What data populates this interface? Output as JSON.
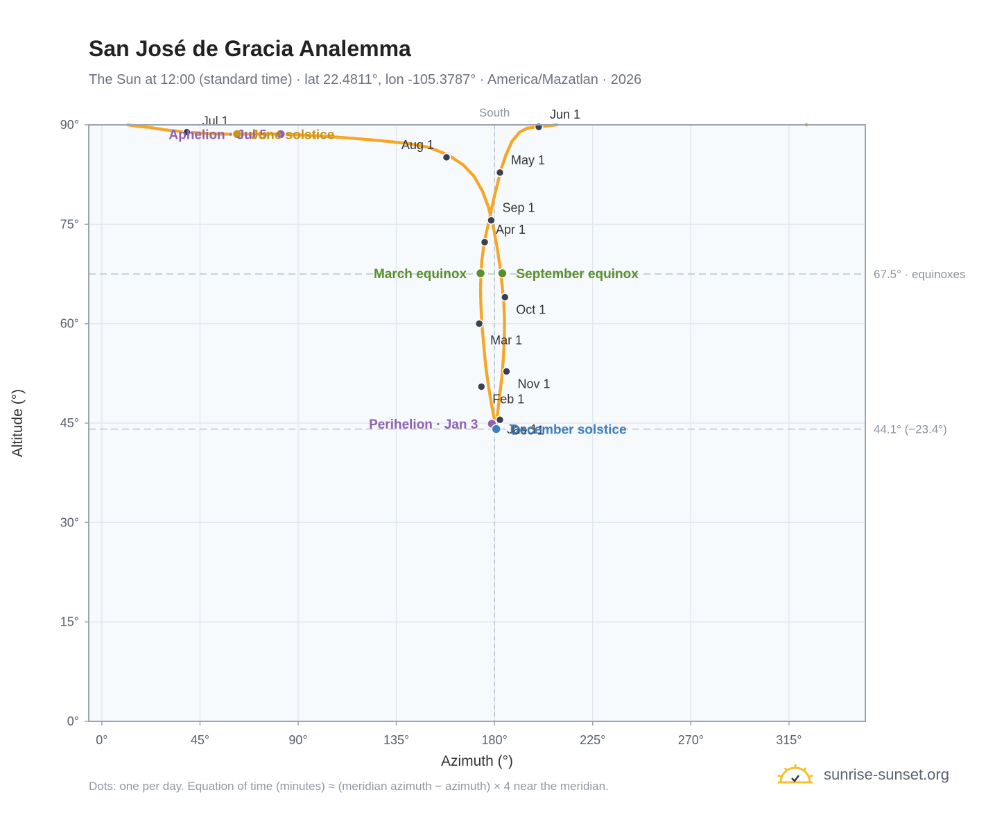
{
  "header": {
    "title": "San José de Gracia Analemma",
    "subtitle": "The Sun at 12:00 (standard time) · lat 22.4811°, lon -105.3787° · America/Mazatlan · 2026"
  },
  "footer": {
    "note": "Dots: one per day. Equation of time (minutes) ≈ (meridian azimuth − azimuth) × 4 near the meridian.",
    "brand": "sunrise-sunset.org",
    "brand_icon": "sun-logo-icon"
  },
  "colors": {
    "curve": "#f5a623",
    "month_dot": "#374151",
    "equinox": "#5a8f2e",
    "perihelion": "#8e62b0",
    "solstice_dec": "#3d7ebf",
    "solstice_jun": "#c8941a",
    "grid": "#e3e8ee",
    "plot_bg": "#f7fafd",
    "ref_line": "#b8c4cf",
    "frame": "#9aa5b1"
  },
  "chart_data": {
    "type": "scatter",
    "xlabel": "Azimuth (°)",
    "ylabel": "Altitude (°)",
    "xlim": [
      -6,
      350
    ],
    "ylim": [
      0,
      90
    ],
    "xticks": [
      0,
      45,
      90,
      135,
      180,
      225,
      270,
      315
    ],
    "xtick_labels": [
      "0°",
      "45°",
      "90°",
      "135°",
      "180°",
      "225°",
      "270°",
      "315°"
    ],
    "yticks": [
      0,
      15,
      30,
      45,
      60,
      75,
      90
    ],
    "ytick_labels": [
      "0°",
      "15°",
      "30°",
      "45°",
      "60°",
      "75°",
      "90°"
    ],
    "grid": true,
    "meridian": {
      "azimuth": 180,
      "label": "South"
    },
    "reference_lines": [
      {
        "altitude": 67.5,
        "label": "67.5° · equinoxes"
      },
      {
        "altitude": 44.1,
        "label": "44.1° (−23.4°)"
      }
    ],
    "curve_path": [
      [
        180.8,
        44.5
      ],
      [
        181.6,
        47
      ],
      [
        182.5,
        49.5
      ],
      [
        183.4,
        52
      ],
      [
        184.0,
        54.5
      ],
      [
        184.5,
        57.5
      ],
      [
        184.6,
        60.5
      ],
      [
        184.3,
        63
      ],
      [
        183.6,
        65.5
      ],
      [
        182.6,
        68.5
      ],
      [
        181.2,
        71.5
      ],
      [
        179.5,
        74.5
      ],
      [
        177.3,
        77.5
      ],
      [
        174.5,
        80.0
      ],
      [
        170.5,
        82.3
      ],
      [
        165.5,
        84.0
      ],
      [
        158.5,
        85.5
      ],
      [
        150.0,
        86.6
      ],
      [
        140.0,
        87.2
      ],
      [
        125.0,
        87.7
      ],
      [
        110.0,
        88.1
      ],
      [
        95.0,
        88.4
      ],
      [
        82.0,
        88.6
      ],
      [
        75.0,
        88.6
      ],
      [
        65.0,
        88.6
      ],
      [
        55.0,
        88.6
      ],
      [
        48.0,
        88.7
      ],
      [
        39.0,
        88.9
      ],
      [
        30.0,
        89.2
      ],
      [
        22.0,
        89.6
      ],
      [
        16.0,
        89.8
      ],
      [
        12.0,
        90.0
      ]
    ],
    "curve_path_b": [
      [
        180.8,
        44.5
      ],
      [
        180.0,
        45.5
      ],
      [
        178.8,
        47.5
      ],
      [
        177.3,
        50.5
      ],
      [
        176.0,
        53.5
      ],
      [
        175.0,
        57.0
      ],
      [
        174.2,
        60.0
      ],
      [
        173.8,
        62.5
      ],
      [
        173.6,
        65.0
      ],
      [
        173.8,
        67.5
      ],
      [
        174.2,
        69.5
      ],
      [
        175.3,
        72.3
      ],
      [
        176.8,
        74.5
      ],
      [
        178.3,
        76.8
      ],
      [
        179.8,
        79.0
      ],
      [
        181.3,
        81.0
      ],
      [
        183.0,
        83.3
      ],
      [
        185.3,
        85.5
      ],
      [
        188.0,
        87.5
      ],
      [
        191.5,
        88.9
      ],
      [
        195.0,
        89.5
      ],
      [
        200.3,
        89.7
      ],
      [
        206.0,
        89.9
      ],
      [
        208.5,
        90.0
      ]
    ],
    "month_markers": [
      {
        "label": "Jan 1",
        "azimuth": 182.5,
        "altitude": 45.5
      },
      {
        "label": "Feb 1",
        "azimuth": 174.0,
        "altitude": 50.5
      },
      {
        "label": "Mar 1",
        "azimuth": 173.0,
        "altitude": 60.0
      },
      {
        "label": "Apr 1",
        "azimuth": 175.5,
        "altitude": 72.3
      },
      {
        "label": "May 1",
        "azimuth": 182.5,
        "altitude": 82.8
      },
      {
        "label": "Jun 1",
        "azimuth": 200.3,
        "altitude": 89.7
      },
      {
        "label": "Jul 1",
        "azimuth": 39.0,
        "altitude": 88.9
      },
      {
        "label": "Aug 1",
        "azimuth": 158.0,
        "altitude": 85.1
      },
      {
        "label": "Sep 1",
        "azimuth": 178.5,
        "altitude": 75.6
      },
      {
        "label": "Oct 1",
        "azimuth": 184.8,
        "altitude": 64.0
      },
      {
        "label": "Nov 1",
        "azimuth": 185.5,
        "altitude": 52.8
      },
      {
        "label": "Dec 1",
        "azimuth": 180.8,
        "altitude": 44.1
      }
    ],
    "events": [
      {
        "label": "March equinox",
        "azimuth": 173.6,
        "altitude": 67.6,
        "color_key": "equinox",
        "anchor": "end"
      },
      {
        "label": "September equinox",
        "azimuth": 183.6,
        "altitude": 67.6,
        "color_key": "equinox",
        "anchor": "start"
      },
      {
        "label": "Perihelion · Jan 3",
        "azimuth": 178.8,
        "altitude": 44.9,
        "color_key": "perihelion",
        "anchor": "end"
      },
      {
        "label": "December solstice",
        "azimuth": 180.8,
        "altitude": 44.1,
        "color_key": "solstice_dec",
        "anchor": "start"
      },
      {
        "label": "Aphelion · Jul 5",
        "azimuth": 82.0,
        "altitude": 88.6,
        "color_key": "perihelion",
        "anchor": "end"
      },
      {
        "label": "June solstice",
        "azimuth": 62.0,
        "altitude": 88.6,
        "color_key": "solstice_jun",
        "anchor": "start"
      }
    ],
    "stray_points": [
      {
        "azimuth": 323.0,
        "altitude": 90.0
      }
    ]
  }
}
